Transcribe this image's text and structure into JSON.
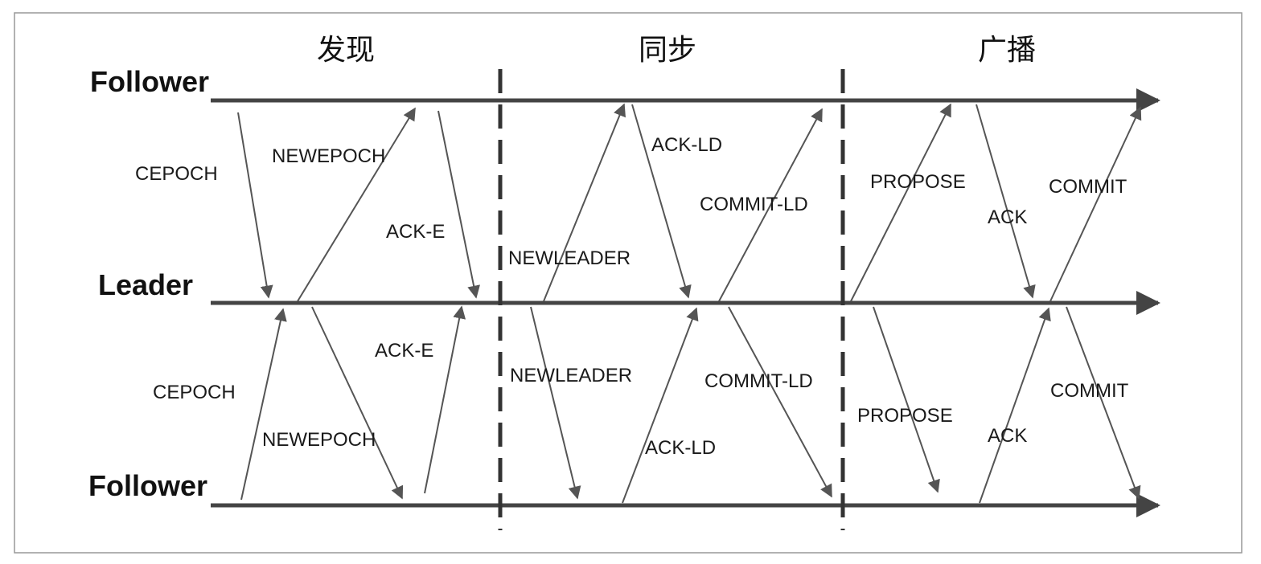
{
  "phases": {
    "discovery": "发现",
    "sync": "同步",
    "broadcast": "广播"
  },
  "roles": {
    "follower_top": "Follower",
    "leader": "Leader",
    "follower_bottom": "Follower"
  },
  "messages": {
    "top": {
      "cepoch": "CEPOCH",
      "newepoch": "NEWEPOCH",
      "ack_e": "ACK-E",
      "newleader": "NEWLEADER",
      "ack_ld": "ACK-LD",
      "commit_ld": "COMMIT-LD",
      "propose": "PROPOSE",
      "ack": "ACK",
      "commit": "COMMIT"
    },
    "bottom": {
      "cepoch": "CEPOCH",
      "newepoch": "NEWEPOCH",
      "ack_e": "ACK-E",
      "newleader": "NEWLEADER",
      "ack_ld": "ACK-LD",
      "commit_ld": "COMMIT-LD",
      "propose": "PROPOSE",
      "ack": "ACK",
      "commit": "COMMIT"
    }
  },
  "colors": {
    "line": "#444444",
    "arrow": "#555555",
    "border": "#999999"
  }
}
